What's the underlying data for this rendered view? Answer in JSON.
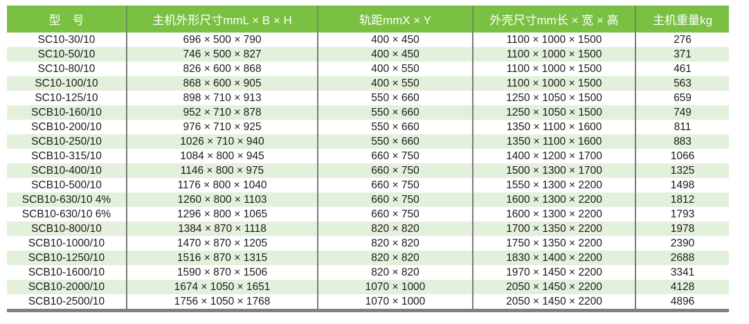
{
  "headers": [
    "型　号",
    "主机外形尺寸mmL × B × H",
    "轨距mmX × Y",
    "外壳尺寸mm长 × 宽 × 高",
    "主机重量kg"
  ],
  "rows": [
    [
      "SC10-30/10",
      "696 × 500 × 790",
      "400 × 450",
      "1100 × 1000 × 1500",
      "276"
    ],
    [
      "SC10-50/10",
      "746 × 500 × 827",
      "400 × 450",
      "1100 × 1000 × 1500",
      "371"
    ],
    [
      "SC10-80/10",
      "826 × 600 × 868",
      "400 × 550",
      "1100 × 1000 × 1500",
      "461"
    ],
    [
      "SC10-100/10",
      "868 × 600 × 905",
      "400 × 550",
      "1100 × 1000 × 1500",
      "563"
    ],
    [
      "SC10-125/10",
      "898 × 710 × 913",
      "550 × 660",
      "1250 × 1050 × 1500",
      "659"
    ],
    [
      "SCB10-160/10",
      "952 × 710 × 878",
      "550 × 660",
      "1250 × 1050 × 1500",
      "749"
    ],
    [
      "SCB10-200/10",
      "976 × 710 × 925",
      "550 × 660",
      "1350 × 1100 × 1600",
      "811"
    ],
    [
      "SCB10-250/10",
      "1026 × 710 × 940",
      "550 × 660",
      "1350 × 1100 × 1600",
      "883"
    ],
    [
      "SCB10-315/10",
      "1084 × 800 × 945",
      "660 × 750",
      "1400 × 1200 × 1700",
      "1066"
    ],
    [
      "SCB10-400/10",
      "1146 × 800 × 975",
      "660 × 750",
      "1500 × 1300 × 1700",
      "1325"
    ],
    [
      "SCB10-500/10",
      "1176 × 800 × 1040",
      "660 × 750",
      "1550 × 1300 × 2200",
      "1498"
    ],
    [
      "SCB10-630/10 4%",
      "1260 × 800 × 1103",
      "660 × 750",
      "1600 × 1300 × 2200",
      "1812"
    ],
    [
      "SCB10-630/10 6%",
      "1296 × 800 × 1065",
      "660 × 750",
      "1600 × 1300 × 2200",
      "1793"
    ],
    [
      "SCB10-800/10",
      "1384 × 870 × 1118",
      "820 × 820",
      "1700 × 1350 × 2200",
      "1978"
    ],
    [
      "SCB10-1000/10",
      "1470 × 870 × 1205",
      "820 × 820",
      "1750 × 1350 × 2200",
      "2390"
    ],
    [
      "SCB10-1250/10",
      "1516 × 870 × 1315",
      "820 × 820",
      "1830 × 1400 × 2200",
      "2688"
    ],
    [
      "SCB10-1600/10",
      "1590 × 870 × 1506",
      "820 × 820",
      "1970 × 1450 × 2200",
      "3341"
    ],
    [
      "SCB10-2000/10",
      "1674 × 1050 × 1651",
      "1070 × 1000",
      "2050 × 1450 × 2200",
      "4128"
    ],
    [
      "SCB10-2500/10",
      "1756 × 1050 × 1768",
      "1070 × 1000",
      "2050 × 1450 × 2200",
      "4896"
    ]
  ],
  "colors": {
    "header": "#7ac143",
    "alt_row": "#e3f1dc",
    "divider": "#7a7a7a"
  }
}
